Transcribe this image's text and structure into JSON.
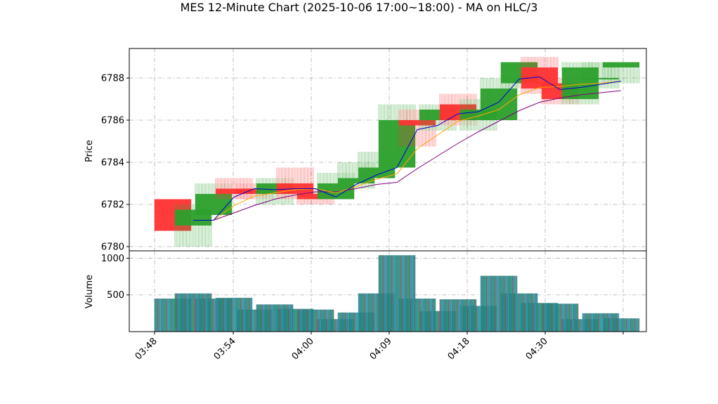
{
  "chart_data": {
    "type": "candlestick",
    "title": "MES 12-Minute Chart (2025-10-06 17:00~18:00) - MA on HLC/3",
    "xlabel": "",
    "price_panel": {
      "ylabel": "Price",
      "ylim": [
        6779.8,
        6789.4
      ],
      "yticks": [
        6780,
        6782,
        6784,
        6786,
        6788
      ]
    },
    "volume_panel": {
      "ylabel": "Volume",
      "ylim": [
        0,
        1100
      ],
      "yticks": [
        500,
        1000
      ]
    },
    "x_tick_labels": [
      "03:48",
      "03:54",
      "04:00",
      "04:09",
      "04:18",
      "04:30",
      ""
    ],
    "grid": true,
    "legend": "none",
    "colors": {
      "up": "#2ca02c",
      "down": "#ff3333",
      "ma_fast": "#0000cc",
      "ma_mid": "#ffa500",
      "ma_slow": "#800080",
      "volume_fill": "#1f8a8a"
    },
    "candles": [
      {
        "open": 6782.25,
        "high": 6782.25,
        "low": 6780.75,
        "close": 6780.75,
        "volume": 450
      },
      {
        "open": 6781.0,
        "high": 6782.0,
        "low": 6780.0,
        "close": 6781.75,
        "volume": 520
      },
      {
        "open": 6781.5,
        "high": 6783.0,
        "low": 6781.5,
        "close": 6782.5,
        "volume": 450
      },
      {
        "open": 6782.75,
        "high": 6783.25,
        "low": 6782.25,
        "close": 6782.5,
        "volume": 460
      },
      {
        "open": 6782.75,
        "high": 6783.0,
        "low": 6782.25,
        "close": 6782.5,
        "volume": 300
      },
      {
        "open": 6782.5,
        "high": 6783.25,
        "low": 6782.0,
        "close": 6783.0,
        "volume": 370
      },
      {
        "open": 6783.0,
        "high": 6783.75,
        "low": 6782.25,
        "close": 6782.5,
        "volume": 310
      },
      {
        "open": 6782.5,
        "high": 6782.75,
        "low": 6782.0,
        "close": 6782.25,
        "volume": 300
      },
      {
        "open": 6782.25,
        "high": 6783.5,
        "low": 6782.25,
        "close": 6783.0,
        "volume": 170
      },
      {
        "open": 6783.0,
        "high": 6784.0,
        "low": 6782.75,
        "close": 6783.25,
        "volume": 260
      },
      {
        "open": 6783.25,
        "high": 6784.5,
        "low": 6783.25,
        "close": 6783.75,
        "volume": 520
      },
      {
        "open": 6783.75,
        "high": 6786.75,
        "low": 6783.75,
        "close": 6786.0,
        "volume": 1040
      },
      {
        "open": 6786.0,
        "high": 6786.5,
        "low": 6784.75,
        "close": 6785.75,
        "volume": 450
      },
      {
        "open": 6786.0,
        "high": 6786.75,
        "low": 6785.5,
        "close": 6786.5,
        "volume": 280
      },
      {
        "open": 6786.75,
        "high": 6787.25,
        "low": 6785.75,
        "close": 6786.0,
        "volume": 440
      },
      {
        "open": 6786.0,
        "high": 6787.0,
        "low": 6785.5,
        "close": 6786.5,
        "volume": 350
      },
      {
        "open": 6786.0,
        "high": 6788.0,
        "low": 6786.0,
        "close": 6787.5,
        "volume": 760
      },
      {
        "open": 6787.75,
        "high": 6788.75,
        "low": 6787.5,
        "close": 6788.75,
        "volume": 520
      },
      {
        "open": 6788.5,
        "high": 6789.0,
        "low": 6787.25,
        "close": 6787.5,
        "volume": 390
      },
      {
        "open": 6787.75,
        "high": 6788.0,
        "low": 6786.75,
        "close": 6787.0,
        "volume": 380
      },
      {
        "open": 6787.0,
        "high": 6788.75,
        "low": 6786.75,
        "close": 6788.5,
        "volume": 170
      },
      {
        "open": 6788.0,
        "high": 6788.75,
        "low": 6787.5,
        "close": 6788.0,
        "volume": 250
      },
      {
        "open": 6788.5,
        "high": 6788.75,
        "low": 6787.75,
        "close": 6788.75,
        "volume": 180
      }
    ],
    "ma_fast": [
      null,
      6781.25,
      6781.25,
      6782.35,
      6782.75,
      6782.7,
      6782.75,
      6782.75,
      6782.35,
      6782.95,
      6783.4,
      6783.75,
      6785.55,
      6785.75,
      6786.3,
      6786.4,
      6786.85,
      6787.95,
      6788.05,
      6787.45,
      6787.55,
      6787.7,
      6787.85
    ],
    "ma_mid": [
      null,
      null,
      6781.25,
      6781.95,
      6782.4,
      6782.55,
      6782.7,
      6782.75,
      6782.55,
      6782.85,
      6783.2,
      6783.45,
      6784.65,
      6785.3,
      6785.95,
      6786.2,
      6786.5,
      6787.2,
      6787.55,
      6787.6,
      6787.7,
      6787.75,
      6787.85
    ],
    "ma_slow": [
      null,
      null,
      6781.25,
      6781.6,
      6781.95,
      6782.25,
      6782.45,
      6782.6,
      6782.6,
      6782.75,
      6782.95,
      6783.05,
      6783.7,
      6784.3,
      6784.9,
      6785.45,
      6785.95,
      6786.45,
      6786.85,
      6787.05,
      6787.2,
      6787.3,
      6787.4
    ]
  }
}
